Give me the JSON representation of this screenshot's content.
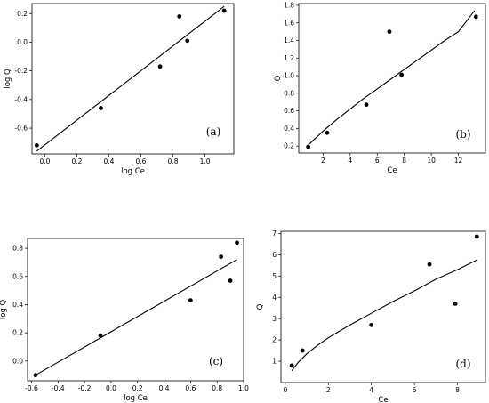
{
  "chart_data": [
    {
      "panel": "(a)",
      "type": "scatter",
      "xlabel": "log Ce",
      "ylabel": "log Q",
      "xlim": [
        -0.08,
        1.18
      ],
      "ylim": [
        -0.78,
        0.27
      ],
      "xticks": [
        0.0,
        0.2,
        0.4,
        0.6,
        0.8,
        1.0
      ],
      "xtick_labels": [
        "0.0",
        "0.2",
        "0.4",
        "0.6",
        "0.8",
        "1.0"
      ],
      "yticks": [
        -0.6,
        -0.4,
        -0.2,
        0.0,
        0.2
      ],
      "ytick_labels": [
        "-0.6",
        "-0.4",
        "-0.2",
        "0.0",
        "0.2"
      ],
      "points": [
        {
          "x": -0.05,
          "y": -0.72
        },
        {
          "x": 0.35,
          "y": -0.46
        },
        {
          "x": 0.72,
          "y": -0.17
        },
        {
          "x": 0.84,
          "y": 0.18
        },
        {
          "x": 0.89,
          "y": 0.01
        },
        {
          "x": 1.12,
          "y": 0.22
        }
      ],
      "fit_line": {
        "x": [
          -0.05,
          1.12
        ],
        "y": [
          -0.76,
          0.25
        ]
      }
    },
    {
      "panel": "(b)",
      "type": "scatter",
      "xlabel": "Ce",
      "ylabel": "Q",
      "xlim": [
        0.2,
        14.0
      ],
      "ylim": [
        0.12,
        1.82
      ],
      "xticks": [
        2,
        4,
        6,
        8,
        10,
        12
      ],
      "xtick_labels": [
        "2",
        "4",
        "6",
        "8",
        "10",
        "12"
      ],
      "yticks": [
        0.2,
        0.4,
        0.6,
        0.8,
        1.0,
        1.2,
        1.4,
        1.6,
        1.8
      ],
      "ytick_labels": [
        "0.2",
        "0.4",
        "0.6",
        "0.8",
        "1.0",
        "1.2",
        "1.4",
        "1.6",
        "1.8"
      ],
      "points": [
        {
          "x": 0.9,
          "y": 0.19
        },
        {
          "x": 2.3,
          "y": 0.35
        },
        {
          "x": 5.2,
          "y": 0.67
        },
        {
          "x": 6.9,
          "y": 1.5
        },
        {
          "x": 7.8,
          "y": 1.01
        },
        {
          "x": 13.3,
          "y": 1.67
        }
      ],
      "fit_curve": {
        "x": [
          0.9,
          2,
          3,
          4,
          5,
          6,
          7,
          8,
          9,
          10,
          11,
          12,
          13.2
        ],
        "y": [
          0.21,
          0.37,
          0.5,
          0.62,
          0.74,
          0.85,
          0.96,
          1.07,
          1.18,
          1.29,
          1.4,
          1.5,
          1.74
        ]
      }
    },
    {
      "panel": "(c)",
      "type": "scatter",
      "xlabel": "log Ce",
      "ylabel": "log Q",
      "xlim": [
        -0.63,
        1.0
      ],
      "ylim": [
        -0.14,
        0.87
      ],
      "xticks": [
        -0.6,
        -0.4,
        -0.2,
        0.0,
        0.2,
        0.4,
        0.6,
        0.8,
        1.0
      ],
      "xtick_labels": [
        "-0.6",
        "-0.4",
        "-0.2",
        "0.0",
        "0.2",
        "0.4",
        "0.6",
        "0.8",
        "1.0"
      ],
      "yticks": [
        0.0,
        0.2,
        0.4,
        0.6,
        0.8
      ],
      "ytick_labels": [
        "0.0",
        "0.2",
        "0.4",
        "0.6",
        "0.8"
      ],
      "points": [
        {
          "x": -0.57,
          "y": -0.1
        },
        {
          "x": -0.08,
          "y": 0.18
        },
        {
          "x": 0.6,
          "y": 0.43
        },
        {
          "x": 0.83,
          "y": 0.74
        },
        {
          "x": 0.9,
          "y": 0.57
        },
        {
          "x": 0.95,
          "y": 0.84
        }
      ],
      "fit_line": {
        "x": [
          -0.57,
          0.95
        ],
        "y": [
          -0.1,
          0.72
        ]
      }
    },
    {
      "panel": "(d)",
      "type": "scatter",
      "xlabel": "Ce",
      "ylabel": "Q",
      "xlim": [
        -0.2,
        9.3
      ],
      "ylim": [
        0.0,
        7.1
      ],
      "xticks": [
        0,
        2,
        4,
        6,
        8
      ],
      "xtick_labels": [
        "0",
        "2",
        "4",
        "6",
        "8"
      ],
      "yticks": [
        1,
        2,
        3,
        4,
        5,
        6,
        7
      ],
      "ytick_labels": [
        "1",
        "2",
        "3",
        "4",
        "5",
        "6",
        "7"
      ],
      "points": [
        {
          "x": 0.3,
          "y": 0.8
        },
        {
          "x": 0.8,
          "y": 1.5
        },
        {
          "x": 4.0,
          "y": 2.7
        },
        {
          "x": 6.7,
          "y": 5.55
        },
        {
          "x": 7.9,
          "y": 3.7
        },
        {
          "x": 8.9,
          "y": 6.85
        }
      ],
      "fit_curve": {
        "x": [
          0.3,
          0.6,
          1,
          1.5,
          2,
          3,
          4,
          5,
          6,
          7,
          8,
          8.9
        ],
        "y": [
          0.55,
          0.95,
          1.35,
          1.75,
          2.1,
          2.7,
          3.25,
          3.8,
          4.3,
          4.85,
          5.3,
          5.75
        ]
      }
    }
  ]
}
